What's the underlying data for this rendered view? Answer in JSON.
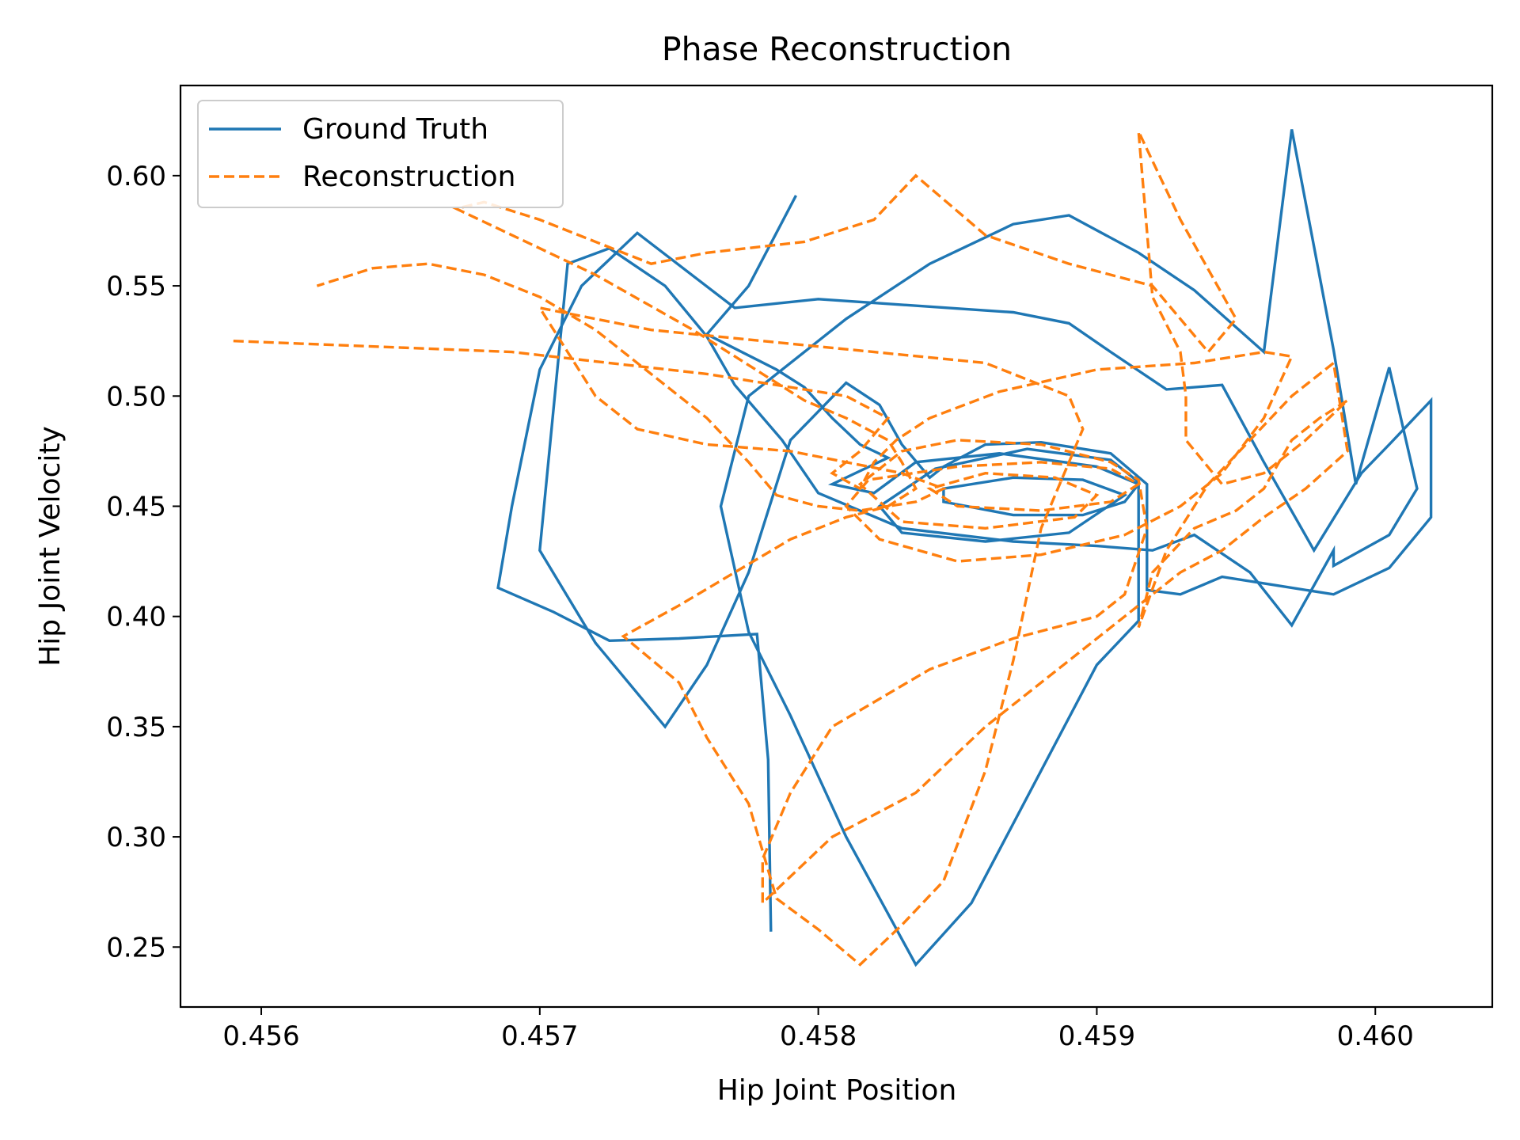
{
  "chart_data": {
    "type": "line",
    "title": "Phase Reconstruction",
    "xlabel": "Hip Joint Position",
    "ylabel": "Hip Joint Velocity",
    "xlim": [
      0.45571,
      0.46042
    ],
    "ylim": [
      0.2228,
      0.6409
    ],
    "xticks": [
      0.456,
      0.457,
      0.458,
      0.459,
      0.46
    ],
    "xtick_labels": [
      "0.456",
      "0.457",
      "0.458",
      "0.459",
      "0.460"
    ],
    "yticks": [
      0.25,
      0.3,
      0.35,
      0.4,
      0.45,
      0.5,
      0.55,
      0.6
    ],
    "ytick_labels": [
      "0.25",
      "0.30",
      "0.35",
      "0.40",
      "0.45",
      "0.50",
      "0.55",
      "0.60"
    ],
    "grid": false,
    "legend_position": "upper-left",
    "series": [
      {
        "name": "Ground Truth",
        "color": "#1f77b4",
        "style": "solid",
        "points": [
          [
            0.45792,
            0.591
          ],
          [
            0.45775,
            0.55
          ],
          [
            0.4576,
            0.528
          ],
          [
            0.45785,
            0.512
          ],
          [
            0.45795,
            0.504
          ],
          [
            0.45805,
            0.49
          ],
          [
            0.45815,
            0.478
          ],
          [
            0.45825,
            0.472
          ],
          [
            0.45815,
            0.466
          ],
          [
            0.45805,
            0.46
          ],
          [
            0.4582,
            0.456
          ],
          [
            0.45835,
            0.47
          ],
          [
            0.45865,
            0.474
          ],
          [
            0.459,
            0.468
          ],
          [
            0.45915,
            0.46
          ],
          [
            0.4591,
            0.452
          ],
          [
            0.45895,
            0.446
          ],
          [
            0.4587,
            0.446
          ],
          [
            0.45845,
            0.452
          ],
          [
            0.45845,
            0.458
          ],
          [
            0.4587,
            0.463
          ],
          [
            0.45895,
            0.462
          ],
          [
            0.4591,
            0.455
          ],
          [
            0.4589,
            0.438
          ],
          [
            0.4586,
            0.434
          ],
          [
            0.4583,
            0.438
          ],
          [
            0.45822,
            0.45
          ],
          [
            0.45842,
            0.467
          ],
          [
            0.45875,
            0.476
          ],
          [
            0.45905,
            0.471
          ],
          [
            0.45915,
            0.461
          ],
          [
            0.45915,
            0.398
          ],
          [
            0.459,
            0.378
          ],
          [
            0.45855,
            0.27
          ],
          [
            0.45835,
            0.242
          ],
          [
            0.4581,
            0.3
          ],
          [
            0.4579,
            0.355
          ],
          [
            0.45775,
            0.393
          ],
          [
            0.45765,
            0.45
          ],
          [
            0.45775,
            0.5
          ],
          [
            0.4581,
            0.535
          ],
          [
            0.4584,
            0.56
          ],
          [
            0.4587,
            0.578
          ],
          [
            0.4589,
            0.582
          ],
          [
            0.45915,
            0.565
          ],
          [
            0.45935,
            0.548
          ],
          [
            0.4596,
            0.52
          ],
          [
            0.4597,
            0.621
          ],
          [
            0.45985,
            0.521
          ],
          [
            0.45993,
            0.46
          ],
          [
            0.46005,
            0.513
          ],
          [
            0.46015,
            0.458
          ],
          [
            0.46005,
            0.437
          ],
          [
            0.45985,
            0.423
          ],
          [
            0.45985,
            0.43
          ],
          [
            0.4597,
            0.396
          ],
          [
            0.45955,
            0.42
          ],
          [
            0.45935,
            0.437
          ],
          [
            0.4592,
            0.43
          ],
          [
            0.459,
            0.432
          ],
          [
            0.4587,
            0.434
          ],
          [
            0.4583,
            0.44
          ],
          [
            0.458,
            0.456
          ],
          [
            0.45787,
            0.48
          ],
          [
            0.4577,
            0.505
          ],
          [
            0.4576,
            0.527
          ],
          [
            0.45745,
            0.55
          ],
          [
            0.45725,
            0.567
          ],
          [
            0.4571,
            0.56
          ],
          [
            0.457,
            0.43
          ],
          [
            0.4572,
            0.388
          ],
          [
            0.45745,
            0.35
          ],
          [
            0.4576,
            0.378
          ],
          [
            0.45775,
            0.42
          ],
          [
            0.4579,
            0.48
          ],
          [
            0.4581,
            0.506
          ],
          [
            0.45822,
            0.496
          ],
          [
            0.4583,
            0.478
          ],
          [
            0.4584,
            0.463
          ],
          [
            0.45845,
            0.468
          ],
          [
            0.4586,
            0.478
          ],
          [
            0.4588,
            0.479
          ],
          [
            0.45905,
            0.474
          ],
          [
            0.45918,
            0.46
          ],
          [
            0.45918,
            0.412
          ],
          [
            0.4593,
            0.41
          ],
          [
            0.45945,
            0.418
          ],
          [
            0.45965,
            0.414
          ],
          [
            0.45985,
            0.41
          ],
          [
            0.46005,
            0.422
          ],
          [
            0.4602,
            0.445
          ],
          [
            0.4602,
            0.498
          ],
          [
            0.46005,
            0.478
          ],
          [
            0.45995,
            0.465
          ],
          [
            0.45978,
            0.43
          ],
          [
            0.4596,
            0.47
          ],
          [
            0.45945,
            0.505
          ],
          [
            0.45925,
            0.503
          ],
          [
            0.45905,
            0.52
          ],
          [
            0.4589,
            0.533
          ],
          [
            0.4587,
            0.538
          ],
          [
            0.458,
            0.544
          ],
          [
            0.4577,
            0.54
          ],
          [
            0.45735,
            0.574
          ],
          [
            0.45715,
            0.55
          ],
          [
            0.457,
            0.512
          ],
          [
            0.4569,
            0.45
          ],
          [
            0.45685,
            0.413
          ],
          [
            0.45705,
            0.402
          ],
          [
            0.45725,
            0.389
          ],
          [
            0.4575,
            0.39
          ],
          [
            0.45778,
            0.392
          ],
          [
            0.45782,
            0.335
          ],
          [
            0.45783,
            0.257
          ]
        ]
      },
      {
        "name": "Reconstruction",
        "color": "#ff7f0e",
        "style": "dashed",
        "points": [
          [
            0.4559,
            0.525
          ],
          [
            0.4569,
            0.52
          ],
          [
            0.4576,
            0.51
          ],
          [
            0.4581,
            0.5
          ],
          [
            0.45825,
            0.49
          ],
          [
            0.45815,
            0.475
          ],
          [
            0.45805,
            0.465
          ],
          [
            0.45815,
            0.458
          ],
          [
            0.4582,
            0.47
          ],
          [
            0.45828,
            0.48
          ],
          [
            0.4584,
            0.49
          ],
          [
            0.45865,
            0.502
          ],
          [
            0.459,
            0.512
          ],
          [
            0.45935,
            0.515
          ],
          [
            0.4596,
            0.52
          ],
          [
            0.4597,
            0.518
          ],
          [
            0.4596,
            0.49
          ],
          [
            0.45945,
            0.465
          ],
          [
            0.4593,
            0.45
          ],
          [
            0.4591,
            0.437
          ],
          [
            0.4588,
            0.428
          ],
          [
            0.4585,
            0.425
          ],
          [
            0.45822,
            0.435
          ],
          [
            0.4581,
            0.45
          ],
          [
            0.45818,
            0.462
          ],
          [
            0.4585,
            0.468
          ],
          [
            0.4588,
            0.47
          ],
          [
            0.45905,
            0.467
          ],
          [
            0.45915,
            0.46
          ],
          [
            0.45905,
            0.452
          ],
          [
            0.4588,
            0.448
          ],
          [
            0.4585,
            0.45
          ],
          [
            0.4584,
            0.458
          ],
          [
            0.4586,
            0.465
          ],
          [
            0.45885,
            0.463
          ],
          [
            0.459,
            0.455
          ],
          [
            0.45892,
            0.445
          ],
          [
            0.4586,
            0.44
          ],
          [
            0.4583,
            0.443
          ],
          [
            0.45815,
            0.46
          ],
          [
            0.4583,
            0.475
          ],
          [
            0.4585,
            0.48
          ],
          [
            0.4588,
            0.478
          ],
          [
            0.45905,
            0.47
          ],
          [
            0.45915,
            0.462
          ],
          [
            0.45918,
            0.44
          ],
          [
            0.4591,
            0.41
          ],
          [
            0.459,
            0.4
          ],
          [
            0.4587,
            0.39
          ],
          [
            0.4584,
            0.376
          ],
          [
            0.45805,
            0.35
          ],
          [
            0.4579,
            0.32
          ],
          [
            0.4578,
            0.29
          ],
          [
            0.4578,
            0.27
          ],
          [
            0.45805,
            0.3
          ],
          [
            0.45835,
            0.32
          ],
          [
            0.4586,
            0.35
          ],
          [
            0.4589,
            0.38
          ],
          [
            0.4591,
            0.4
          ],
          [
            0.4593,
            0.42
          ],
          [
            0.45945,
            0.43
          ],
          [
            0.4596,
            0.445
          ],
          [
            0.45975,
            0.458
          ],
          [
            0.4599,
            0.475
          ],
          [
            0.45985,
            0.515
          ],
          [
            0.4597,
            0.5
          ],
          [
            0.45955,
            0.48
          ],
          [
            0.4594,
            0.46
          ],
          [
            0.45925,
            0.43
          ],
          [
            0.45915,
            0.395
          ],
          [
            0.4592,
            0.42
          ],
          [
            0.45935,
            0.44
          ],
          [
            0.4595,
            0.448
          ],
          [
            0.4596,
            0.458
          ],
          [
            0.4597,
            0.48
          ],
          [
            0.4598,
            0.49
          ],
          [
            0.4599,
            0.498
          ],
          [
            0.45975,
            0.48
          ],
          [
            0.4596,
            0.465
          ],
          [
            0.45945,
            0.46
          ],
          [
            0.45932,
            0.48
          ],
          [
            0.45932,
            0.5
          ],
          [
            0.4593,
            0.52
          ],
          [
            0.4592,
            0.545
          ],
          [
            0.45915,
            0.62
          ],
          [
            0.4593,
            0.58
          ],
          [
            0.4595,
            0.535
          ],
          [
            0.4594,
            0.52
          ],
          [
            0.4592,
            0.55
          ],
          [
            0.4589,
            0.56
          ],
          [
            0.4586,
            0.573
          ],
          [
            0.45835,
            0.6
          ],
          [
            0.4582,
            0.58
          ],
          [
            0.45795,
            0.57
          ],
          [
            0.4576,
            0.565
          ],
          [
            0.4574,
            0.56
          ],
          [
            0.4572,
            0.57
          ],
          [
            0.457,
            0.58
          ],
          [
            0.4568,
            0.588
          ],
          [
            0.4567,
            0.585
          ],
          [
            0.4572,
            0.555
          ],
          [
            0.45755,
            0.53
          ],
          [
            0.4578,
            0.51
          ],
          [
            0.45795,
            0.498
          ],
          [
            0.4581,
            0.49
          ],
          [
            0.45825,
            0.48
          ],
          [
            0.4583,
            0.47
          ],
          [
            0.45835,
            0.458
          ],
          [
            0.45825,
            0.45
          ],
          [
            0.4581,
            0.445
          ],
          [
            0.4579,
            0.435
          ],
          [
            0.4577,
            0.42
          ],
          [
            0.4575,
            0.405
          ],
          [
            0.4573,
            0.391
          ],
          [
            0.4575,
            0.37
          ],
          [
            0.4576,
            0.345
          ],
          [
            0.45775,
            0.315
          ],
          [
            0.45785,
            0.272
          ],
          [
            0.458,
            0.258
          ],
          [
            0.45815,
            0.242
          ],
          [
            0.4583,
            0.26
          ],
          [
            0.45845,
            0.28
          ],
          [
            0.4586,
            0.33
          ],
          [
            0.4587,
            0.38
          ],
          [
            0.4588,
            0.44
          ],
          [
            0.4589,
            0.47
          ],
          [
            0.45895,
            0.485
          ],
          [
            0.4589,
            0.5
          ],
          [
            0.4586,
            0.515
          ],
          [
            0.4582,
            0.52
          ],
          [
            0.4578,
            0.525
          ],
          [
            0.4574,
            0.53
          ],
          [
            0.457,
            0.54
          ],
          [
            0.4571,
            0.52
          ],
          [
            0.4572,
            0.5
          ],
          [
            0.45735,
            0.485
          ],
          [
            0.4576,
            0.478
          ],
          [
            0.4579,
            0.475
          ],
          [
            0.4581,
            0.47
          ],
          [
            0.4583,
            0.465
          ],
          [
            0.45845,
            0.458
          ],
          [
            0.45835,
            0.452
          ],
          [
            0.45815,
            0.448
          ],
          [
            0.458,
            0.45
          ],
          [
            0.45785,
            0.455
          ],
          [
            0.45775,
            0.47
          ],
          [
            0.4576,
            0.49
          ],
          [
            0.4574,
            0.51
          ],
          [
            0.4572,
            0.53
          ],
          [
            0.457,
            0.545
          ],
          [
            0.4568,
            0.555
          ],
          [
            0.4566,
            0.56
          ],
          [
            0.4564,
            0.558
          ],
          [
            0.4562,
            0.55
          ]
        ]
      }
    ]
  }
}
